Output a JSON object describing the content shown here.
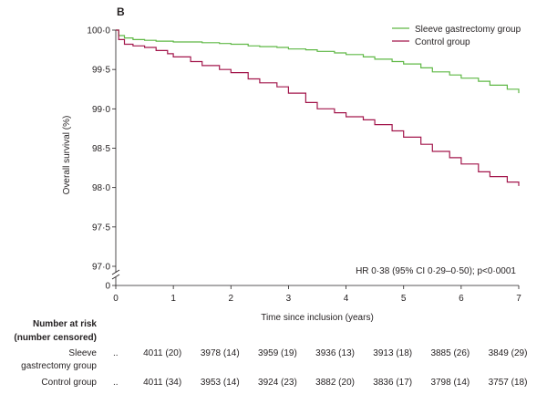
{
  "panel_label": "B",
  "annotation": "HR 0·38 (95% CI 0·29–0·50); p<0·0001",
  "chart_data": {
    "type": "line",
    "xlabel": "Time since inclusion (years)",
    "ylabel": "Overall survival (%)",
    "xlim": [
      0,
      7
    ],
    "ylim": [
      97.0,
      100.0
    ],
    "axis_break": true,
    "y_bottom_tick": "0",
    "xticks": [
      0,
      1,
      2,
      3,
      4,
      5,
      6,
      7
    ],
    "yticks": [
      "97·0",
      "97·5",
      "98·0",
      "98·5",
      "99·0",
      "99·5",
      "100·0"
    ],
    "ytick_values": [
      97.0,
      97.5,
      98.0,
      98.5,
      99.0,
      99.5,
      100.0
    ],
    "legend_position": "top-right",
    "series": [
      {
        "name": "Sleeve gastrectomy group",
        "color": "#5fb845",
        "x": [
          0,
          0.05,
          0.15,
          0.3,
          0.5,
          0.7,
          1.0,
          1.3,
          1.5,
          1.8,
          2.0,
          2.3,
          2.5,
          2.8,
          3.0,
          3.3,
          3.5,
          3.8,
          4.0,
          4.3,
          4.5,
          4.8,
          5.0,
          5.3,
          5.5,
          5.8,
          6.0,
          6.3,
          6.5,
          6.8,
          7.0
        ],
        "y": [
          100.0,
          99.93,
          99.9,
          99.88,
          99.87,
          99.86,
          99.85,
          99.85,
          99.84,
          99.83,
          99.82,
          99.8,
          99.79,
          99.78,
          99.76,
          99.75,
          99.73,
          99.71,
          99.69,
          99.66,
          99.63,
          99.6,
          99.57,
          99.52,
          99.47,
          99.43,
          99.39,
          99.35,
          99.3,
          99.25,
          99.2
        ]
      },
      {
        "name": "Control group",
        "color": "#a3174c",
        "x": [
          0,
          0.05,
          0.15,
          0.3,
          0.5,
          0.7,
          0.9,
          1.0,
          1.3,
          1.5,
          1.8,
          2.0,
          2.3,
          2.5,
          2.8,
          3.0,
          3.3,
          3.5,
          3.8,
          4.0,
          4.3,
          4.5,
          4.8,
          5.0,
          5.3,
          5.5,
          5.8,
          6.0,
          6.3,
          6.5,
          6.8,
          7.0
        ],
        "y": [
          100.0,
          99.88,
          99.82,
          99.8,
          99.78,
          99.74,
          99.7,
          99.66,
          99.6,
          99.55,
          99.5,
          99.46,
          99.38,
          99.33,
          99.28,
          99.2,
          99.08,
          99.0,
          98.95,
          98.9,
          98.86,
          98.8,
          98.72,
          98.64,
          98.55,
          98.46,
          98.38,
          98.3,
          98.2,
          98.14,
          98.07,
          98.02
        ]
      }
    ]
  },
  "risk_table": {
    "header_line1": "Number at risk",
    "header_line2": "(number censored)",
    "rows": [
      {
        "label_line1": "Sleeve",
        "label_line2": "gastrectomy group",
        "dots": "..",
        "values": [
          "4011 (20)",
          "3978 (14)",
          "3959 (19)",
          "3936 (13)",
          "3913 (18)",
          "3885 (26)",
          "3849 (29)"
        ]
      },
      {
        "label_line1": "Control group",
        "dots": "..",
        "values": [
          "4011 (34)",
          "3953 (14)",
          "3924 (23)",
          "3882 (20)",
          "3836 (17)",
          "3798 (14)",
          "3757 (18)"
        ]
      }
    ]
  }
}
